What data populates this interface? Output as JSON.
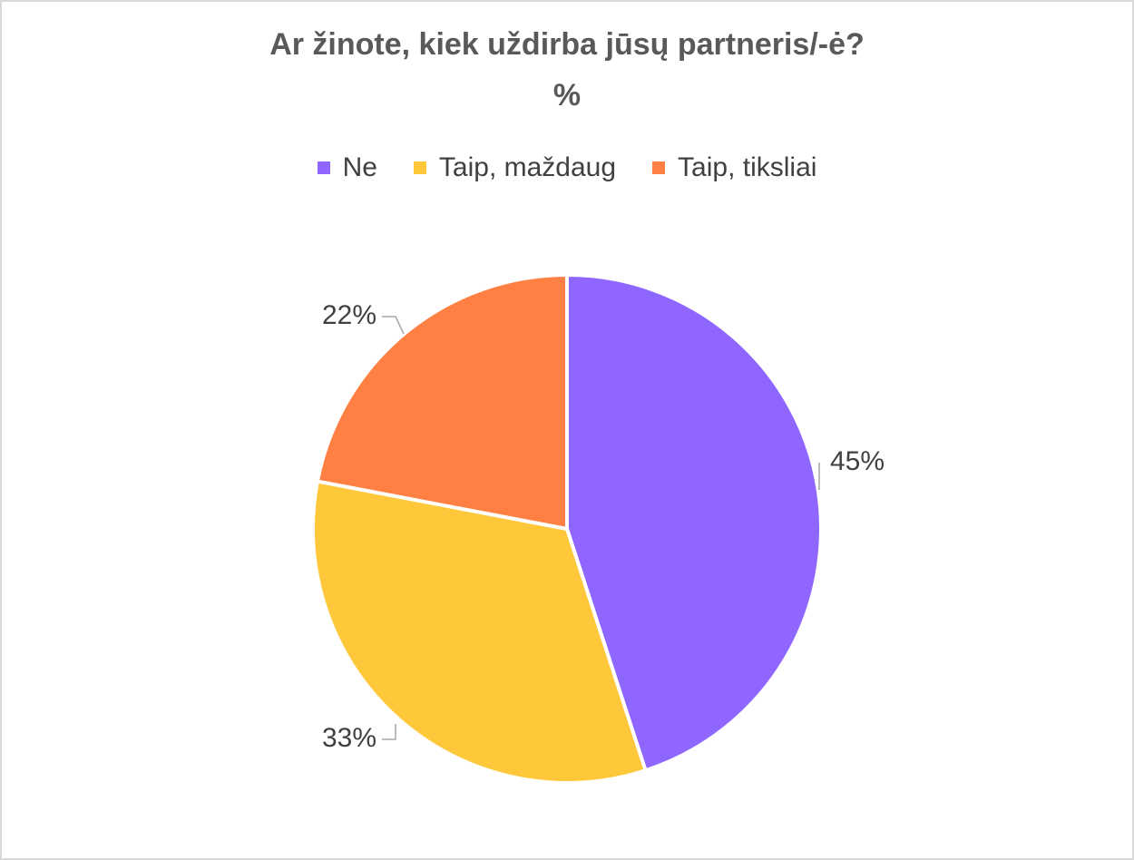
{
  "chart_data": {
    "type": "pie",
    "title": "Ar žinote, kiek uždirba jūsų partneris/-ė?",
    "subtitle": "%",
    "legend_position": "top",
    "slices": [
      {
        "label": "Ne",
        "value": 45,
        "display": "45%",
        "color": "#8f66ff"
      },
      {
        "label": "Taip, maždaug",
        "value": 33,
        "display": "33%",
        "color": "#ffc83b"
      },
      {
        "label": "Taip, tiksliai",
        "value": 22,
        "display": "22%",
        "color": "#ff8042"
      }
    ]
  }
}
